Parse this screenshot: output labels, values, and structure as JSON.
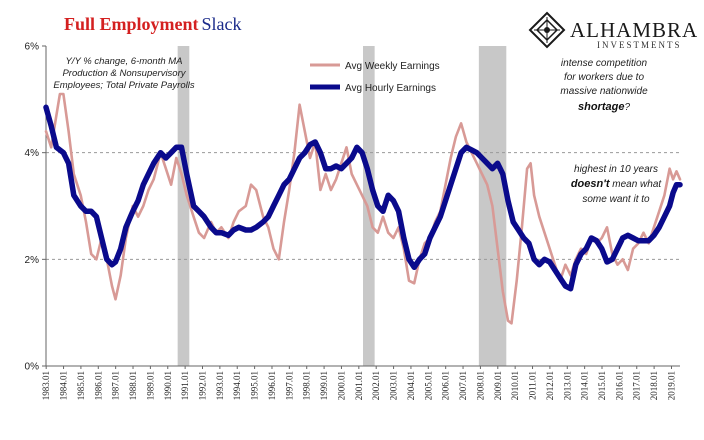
{
  "title": {
    "part1": "Full Employment",
    "part2": "Slack"
  },
  "logo": {
    "name": "ALHAMBRA",
    "sub": "INVESTMENTS"
  },
  "note_lines": [
    "Y/Y % change, 6-month MA",
    "Production & Nonsupervisory",
    "Employees; Total Private Payrolls"
  ],
  "annotations": {
    "a1": [
      "intense competition",
      "for workers due to",
      "massive nationwide"
    ],
    "a1_bold": "shortage",
    "a1_tail": "?",
    "a2_line1": "highest in 10 years",
    "a2_bold": "doesn't",
    "a2_line2_rest": " mean what",
    "a2_line3": "some want it to"
  },
  "colors": {
    "title_red": "#d42020",
    "title_blue": "#1a2a8a",
    "weekly": "#d89a96",
    "hourly": "#0a0a8c",
    "recession": "#c8c8c8",
    "grid": "#999999"
  },
  "chart_data": {
    "type": "line",
    "title": "Full Employment Slack",
    "ylim": [
      0,
      6
    ],
    "yticks": [
      0,
      2,
      4,
      6
    ],
    "ytick_labels": [
      "0%",
      "2%",
      "4%",
      "6%"
    ],
    "xlim": [
      1983.0,
      2019.5
    ],
    "xtick_labels": [
      "1983.01",
      "1984.01",
      "1985.01",
      "1986.01",
      "1987.01",
      "1988.01",
      "1989.01",
      "1990.01",
      "1991.01",
      "1992.01",
      "1993.01",
      "1994.01",
      "1995.01",
      "1996.01",
      "1997.01",
      "1998.01",
      "1999.01",
      "2000.01",
      "2001.01",
      "2002.01",
      "2003.01",
      "2004.01",
      "2005.01",
      "2006.01",
      "2007.01",
      "2008.01",
      "2009.01",
      "2010.01",
      "2011.01",
      "2012.01",
      "2013.01",
      "2014.01",
      "2015.01",
      "2016.01",
      "2017.01",
      "2018.01",
      "2019.01"
    ],
    "grid": "horizontal dashed",
    "legend_position": "top-center",
    "recessions": [
      [
        1990.58,
        1991.25
      ],
      [
        2001.25,
        2001.92
      ],
      [
        2007.92,
        2009.5
      ]
    ],
    "series": [
      {
        "name": "Avg Weekly Earnings",
        "points": [
          [
            1983.0,
            4.4
          ],
          [
            1983.3,
            4.1
          ],
          [
            1983.6,
            4.7
          ],
          [
            1983.8,
            5.1
          ],
          [
            1984.0,
            5.1
          ],
          [
            1984.3,
            4.4
          ],
          [
            1984.6,
            3.6
          ],
          [
            1985.0,
            3.2
          ],
          [
            1985.3,
            2.7
          ],
          [
            1985.6,
            2.1
          ],
          [
            1985.9,
            2.0
          ],
          [
            1986.2,
            2.4
          ],
          [
            1986.5,
            2.0
          ],
          [
            1986.8,
            1.5
          ],
          [
            1987.0,
            1.25
          ],
          [
            1987.3,
            1.7
          ],
          [
            1987.6,
            2.4
          ],
          [
            1988.0,
            3.0
          ],
          [
            1988.3,
            2.8
          ],
          [
            1988.6,
            3.0
          ],
          [
            1988.9,
            3.3
          ],
          [
            1989.2,
            3.5
          ],
          [
            1989.6,
            4.0
          ],
          [
            1989.9,
            3.7
          ],
          [
            1990.2,
            3.4
          ],
          [
            1990.5,
            3.9
          ],
          [
            1990.8,
            3.6
          ],
          [
            1991.1,
            3.2
          ],
          [
            1991.5,
            2.8
          ],
          [
            1991.8,
            2.5
          ],
          [
            1992.1,
            2.4
          ],
          [
            1992.5,
            2.7
          ],
          [
            1992.8,
            2.5
          ],
          [
            1993.1,
            2.6
          ],
          [
            1993.5,
            2.4
          ],
          [
            1993.8,
            2.7
          ],
          [
            1994.1,
            2.9
          ],
          [
            1994.5,
            3.0
          ],
          [
            1994.8,
            3.4
          ],
          [
            1995.1,
            3.3
          ],
          [
            1995.5,
            2.8
          ],
          [
            1995.8,
            2.6
          ],
          [
            1996.1,
            2.2
          ],
          [
            1996.4,
            2.0
          ],
          [
            1996.7,
            2.7
          ],
          [
            1997.0,
            3.3
          ],
          [
            1997.3,
            4.0
          ],
          [
            1997.6,
            4.9
          ],
          [
            1997.9,
            4.4
          ],
          [
            1998.2,
            3.9
          ],
          [
            1998.5,
            4.2
          ],
          [
            1998.8,
            3.3
          ],
          [
            1999.1,
            3.6
          ],
          [
            1999.4,
            3.3
          ],
          [
            1999.7,
            3.5
          ],
          [
            2000.0,
            3.8
          ],
          [
            2000.3,
            4.1
          ],
          [
            2000.6,
            3.6
          ],
          [
            2000.9,
            3.4
          ],
          [
            2001.2,
            3.2
          ],
          [
            2001.5,
            3.0
          ],
          [
            2001.8,
            2.6
          ],
          [
            2002.1,
            2.5
          ],
          [
            2002.4,
            2.8
          ],
          [
            2002.7,
            2.5
          ],
          [
            2003.0,
            2.4
          ],
          [
            2003.3,
            2.6
          ],
          [
            2003.6,
            2.2
          ],
          [
            2003.9,
            1.6
          ],
          [
            2004.2,
            1.55
          ],
          [
            2004.5,
            2.0
          ],
          [
            2004.8,
            2.3
          ],
          [
            2005.1,
            2.4
          ],
          [
            2005.4,
            2.7
          ],
          [
            2005.7,
            2.9
          ],
          [
            2006.0,
            3.4
          ],
          [
            2006.3,
            3.9
          ],
          [
            2006.6,
            4.3
          ],
          [
            2006.9,
            4.55
          ],
          [
            2007.2,
            4.2
          ],
          [
            2007.5,
            4.0
          ],
          [
            2007.8,
            3.8
          ],
          [
            2008.1,
            3.6
          ],
          [
            2008.4,
            3.4
          ],
          [
            2008.7,
            3.0
          ],
          [
            2009.0,
            2.2
          ],
          [
            2009.3,
            1.4
          ],
          [
            2009.6,
            0.85
          ],
          [
            2009.8,
            0.8
          ],
          [
            2010.1,
            1.6
          ],
          [
            2010.4,
            2.6
          ],
          [
            2010.7,
            3.7
          ],
          [
            2010.9,
            3.8
          ],
          [
            2011.1,
            3.2
          ],
          [
            2011.4,
            2.8
          ],
          [
            2011.7,
            2.5
          ],
          [
            2012.0,
            2.2
          ],
          [
            2012.3,
            1.9
          ],
          [
            2012.6,
            1.6
          ],
          [
            2012.9,
            1.9
          ],
          [
            2013.2,
            1.7
          ],
          [
            2013.5,
            2.0
          ],
          [
            2013.8,
            2.2
          ],
          [
            2014.1,
            2.1
          ],
          [
            2014.4,
            2.4
          ],
          [
            2014.7,
            2.3
          ],
          [
            2015.0,
            2.4
          ],
          [
            2015.3,
            2.6
          ],
          [
            2015.6,
            2.1
          ],
          [
            2015.9,
            1.9
          ],
          [
            2016.2,
            2.0
          ],
          [
            2016.5,
            1.8
          ],
          [
            2016.8,
            2.2
          ],
          [
            2017.1,
            2.3
          ],
          [
            2017.4,
            2.5
          ],
          [
            2017.7,
            2.3
          ],
          [
            2018.0,
            2.6
          ],
          [
            2018.3,
            2.9
          ],
          [
            2018.6,
            3.2
          ],
          [
            2018.9,
            3.7
          ],
          [
            2019.1,
            3.5
          ],
          [
            2019.3,
            3.65
          ],
          [
            2019.5,
            3.5
          ]
        ]
      },
      {
        "name": "Avg Hourly Earnings",
        "points": [
          [
            1983.0,
            4.85
          ],
          [
            1983.3,
            4.5
          ],
          [
            1983.6,
            4.1
          ],
          [
            1984.0,
            4.0
          ],
          [
            1984.3,
            3.8
          ],
          [
            1984.6,
            3.2
          ],
          [
            1985.0,
            3.0
          ],
          [
            1985.3,
            2.9
          ],
          [
            1985.6,
            2.9
          ],
          [
            1985.9,
            2.8
          ],
          [
            1986.2,
            2.4
          ],
          [
            1986.5,
            2.0
          ],
          [
            1986.8,
            1.9
          ],
          [
            1987.0,
            1.95
          ],
          [
            1987.3,
            2.2
          ],
          [
            1987.6,
            2.6
          ],
          [
            1988.0,
            2.9
          ],
          [
            1988.3,
            3.1
          ],
          [
            1988.6,
            3.4
          ],
          [
            1988.9,
            3.6
          ],
          [
            1989.2,
            3.8
          ],
          [
            1989.6,
            4.0
          ],
          [
            1989.9,
            3.9
          ],
          [
            1990.2,
            4.0
          ],
          [
            1990.5,
            4.1
          ],
          [
            1990.8,
            4.1
          ],
          [
            1991.1,
            3.6
          ],
          [
            1991.5,
            3.0
          ],
          [
            1991.8,
            2.9
          ],
          [
            1992.1,
            2.8
          ],
          [
            1992.5,
            2.6
          ],
          [
            1992.8,
            2.5
          ],
          [
            1993.1,
            2.5
          ],
          [
            1993.5,
            2.45
          ],
          [
            1993.8,
            2.55
          ],
          [
            1994.1,
            2.6
          ],
          [
            1994.5,
            2.55
          ],
          [
            1994.8,
            2.55
          ],
          [
            1995.1,
            2.6
          ],
          [
            1995.5,
            2.7
          ],
          [
            1995.8,
            2.8
          ],
          [
            1996.1,
            3.0
          ],
          [
            1996.4,
            3.2
          ],
          [
            1996.7,
            3.4
          ],
          [
            1997.0,
            3.5
          ],
          [
            1997.3,
            3.7
          ],
          [
            1997.6,
            3.9
          ],
          [
            1997.9,
            4.0
          ],
          [
            1998.2,
            4.15
          ],
          [
            1998.5,
            4.2
          ],
          [
            1998.8,
            4.0
          ],
          [
            1999.1,
            3.7
          ],
          [
            1999.4,
            3.7
          ],
          [
            1999.7,
            3.75
          ],
          [
            2000.0,
            3.7
          ],
          [
            2000.3,
            3.8
          ],
          [
            2000.6,
            3.9
          ],
          [
            2000.9,
            4.1
          ],
          [
            2001.2,
            4.0
          ],
          [
            2001.5,
            3.7
          ],
          [
            2001.8,
            3.3
          ],
          [
            2002.1,
            3.0
          ],
          [
            2002.4,
            2.9
          ],
          [
            2002.7,
            3.2
          ],
          [
            2003.0,
            3.1
          ],
          [
            2003.3,
            2.9
          ],
          [
            2003.6,
            2.4
          ],
          [
            2003.9,
            2.0
          ],
          [
            2004.2,
            1.85
          ],
          [
            2004.5,
            2.0
          ],
          [
            2004.8,
            2.1
          ],
          [
            2005.1,
            2.4
          ],
          [
            2005.4,
            2.6
          ],
          [
            2005.7,
            2.8
          ],
          [
            2006.0,
            3.1
          ],
          [
            2006.3,
            3.4
          ],
          [
            2006.6,
            3.7
          ],
          [
            2006.9,
            4.0
          ],
          [
            2007.2,
            4.1
          ],
          [
            2007.5,
            4.05
          ],
          [
            2007.8,
            4.0
          ],
          [
            2008.1,
            3.9
          ],
          [
            2008.4,
            3.8
          ],
          [
            2008.7,
            3.7
          ],
          [
            2009.0,
            3.8
          ],
          [
            2009.3,
            3.6
          ],
          [
            2009.6,
            3.1
          ],
          [
            2009.9,
            2.7
          ],
          [
            2010.2,
            2.55
          ],
          [
            2010.5,
            2.4
          ],
          [
            2010.8,
            2.3
          ],
          [
            2011.1,
            2.0
          ],
          [
            2011.4,
            1.9
          ],
          [
            2011.7,
            2.0
          ],
          [
            2012.0,
            1.95
          ],
          [
            2012.3,
            1.8
          ],
          [
            2012.6,
            1.65
          ],
          [
            2012.9,
            1.5
          ],
          [
            2013.2,
            1.45
          ],
          [
            2013.5,
            1.9
          ],
          [
            2013.8,
            2.1
          ],
          [
            2014.1,
            2.2
          ],
          [
            2014.4,
            2.4
          ],
          [
            2014.7,
            2.35
          ],
          [
            2015.0,
            2.2
          ],
          [
            2015.3,
            1.95
          ],
          [
            2015.6,
            2.0
          ],
          [
            2015.9,
            2.2
          ],
          [
            2016.2,
            2.4
          ],
          [
            2016.5,
            2.45
          ],
          [
            2016.8,
            2.4
          ],
          [
            2017.1,
            2.35
          ],
          [
            2017.4,
            2.35
          ],
          [
            2017.7,
            2.35
          ],
          [
            2018.0,
            2.45
          ],
          [
            2018.3,
            2.6
          ],
          [
            2018.6,
            2.8
          ],
          [
            2018.9,
            3.0
          ],
          [
            2019.1,
            3.25
          ],
          [
            2019.3,
            3.4
          ],
          [
            2019.5,
            3.4
          ]
        ]
      }
    ]
  }
}
